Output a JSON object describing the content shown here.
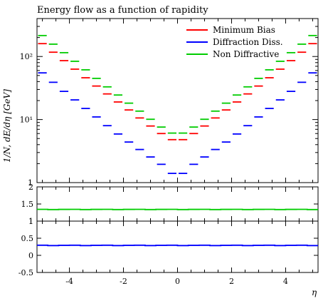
{
  "chart_data": {
    "type": "line",
    "title": "Energy flow as a function of rapidity",
    "xlabel": "η",
    "ylabel": "1/N, dE/dη [GeV]",
    "xlim": [
      -5.2,
      5.2
    ],
    "x_ticks": [
      -4,
      -2,
      0,
      2,
      4
    ],
    "x_tick_labels": [
      "-4",
      "-2",
      "0",
      "2",
      "4"
    ],
    "y_scale": "log",
    "ylim": [
      1,
      400
    ],
    "y_ticks": [
      1,
      10,
      100
    ],
    "y_tick_labels": [
      "1",
      "10¹",
      "10²"
    ],
    "legend_position": "top-right",
    "bin_edges": [
      -5.2,
      -4.8,
      -4.4,
      -4.0,
      -3.6,
      -3.2,
      -2.8,
      -2.4,
      -2.0,
      -1.6,
      -1.2,
      -0.8,
      -0.4,
      0.0,
      0.4,
      0.8,
      1.2,
      1.6,
      2.0,
      2.4,
      2.8,
      3.2,
      3.6,
      4.0,
      4.4,
      4.8,
      5.2
    ],
    "series": [
      {
        "name": "Minimum Bias",
        "color": "#ff0000",
        "values": [
          160,
          117,
          86,
          63,
          46,
          34,
          25.5,
          19,
          14.2,
          10.6,
          7.9,
          6.0,
          4.8,
          4.8,
          6.0,
          7.9,
          10.6,
          14.2,
          19,
          25.5,
          34,
          46,
          63,
          86,
          117,
          160
        ]
      },
      {
        "name": "Diffraction Diss.",
        "color": "#0000ff",
        "values": [
          55,
          39,
          28,
          20.5,
          15,
          11,
          8.0,
          5.9,
          4.4,
          3.35,
          2.55,
          1.95,
          1.4,
          1.4,
          1.95,
          2.55,
          3.35,
          4.4,
          5.9,
          8.0,
          11,
          15,
          20.5,
          28,
          39,
          55
        ]
      },
      {
        "name": "Non Diffractive",
        "color": "#00cc00",
        "values": [
          215,
          157,
          115,
          84,
          61.5,
          45,
          33,
          24.5,
          18.2,
          13.6,
          10.1,
          7.6,
          6.1,
          6.1,
          7.6,
          10.1,
          13.6,
          18.2,
          24.5,
          33,
          45,
          61.5,
          84,
          115,
          157,
          215
        ]
      }
    ],
    "ratio_panels": [
      {
        "ylim": [
          1,
          2
        ],
        "y_ticks": [
          1,
          1.5,
          2
        ],
        "y_tick_labels": [
          "1",
          "1.5",
          "2"
        ],
        "series": "Non Diffractive",
        "ratio_value": 1.34,
        "color": "#00cc00"
      },
      {
        "ylim": [
          -0.5,
          1
        ],
        "y_ticks": [
          -0.5,
          0,
          0.5,
          1
        ],
        "y_tick_labels": [
          "-0.5",
          "0",
          "0.5",
          "1"
        ],
        "series": "Diffraction Diss.",
        "ratio_value": 0.29,
        "color": "#0000ff"
      }
    ]
  }
}
